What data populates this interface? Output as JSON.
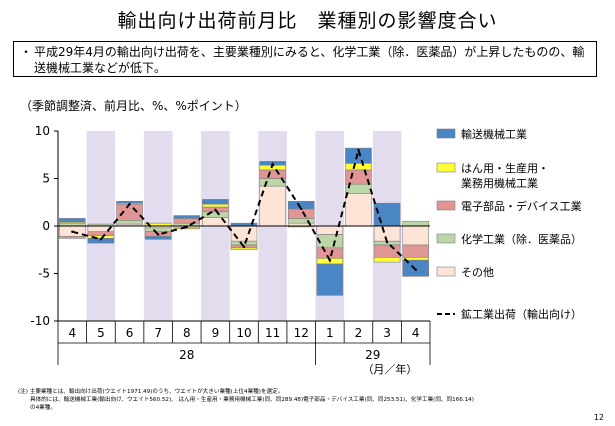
{
  "title": "輸出向け出荷前月比　業種別の影響度合い",
  "summary": {
    "bullet": "・",
    "text": "平成29年4月の輸出向け出荷を、主要業種別にみると、化学工業（除．医薬品）が上昇したものの、輸送機械工業などが低下。"
  },
  "unit_label": "（季節調整済、前月比、%、%ポイント）",
  "note": {
    "line1": "(注) 主要業種とは、輸出向け出荷(ウエイト1971.49)のうち、ウエイトが大きい業種(上位4業種)を選定。",
    "line2": "具体的には、輸送機械工業(輸出向け、ウエイト560.52)、 はん用・生産用・業務用機械工業(同、同289.48)電子部品・デバイス工業(同、同253.51)、化学工業(同、同166.14)",
    "line3": "の4業種。"
  },
  "page_number": "12",
  "colors": {
    "transport": "#4a86c5",
    "machinery": "#ffff33",
    "electronics": "#e19595",
    "chemical": "#bdd6a8",
    "other": "#fde4d6",
    "shade": "#e3dcef",
    "line": "#000000"
  },
  "chart_data": {
    "type": "bar",
    "stacked": true,
    "x_labels": [
      "4",
      "5",
      "6",
      "7",
      "8",
      "9",
      "10",
      "11",
      "12",
      "1",
      "2",
      "3",
      "4"
    ],
    "year_labels": [
      {
        "label": "28",
        "from": 0,
        "to": 8
      },
      {
        "label": "29",
        "from": 9,
        "to": 12
      }
    ],
    "axis_unit": "（月／年）",
    "shaded_months": [
      1,
      3,
      5,
      7,
      9,
      11
    ],
    "ylim": [
      -10,
      10
    ],
    "yticks": [
      -10,
      -5,
      0,
      5,
      10
    ],
    "series": [
      {
        "name": "その他",
        "key": "other",
        "values": [
          -1.1,
          -0.6,
          0.2,
          -0.2,
          -0.2,
          0.9,
          -1.6,
          4.2,
          0.3,
          -0.9,
          3.4,
          -1.6,
          -2.0
        ]
      },
      {
        "name": "化学工業（除．医薬品）",
        "key": "chemical",
        "values": [
          0.3,
          0.2,
          0.4,
          -0.4,
          0.3,
          0.6,
          -0.4,
          0.8,
          0.5,
          -1.4,
          1.0,
          -0.4,
          0.5
        ]
      },
      {
        "name": "電子部品・デバイス工業",
        "key": "electronics",
        "values": [
          -0.2,
          -0.4,
          1.7,
          -0.5,
          0.5,
          0.5,
          -0.3,
          0.9,
          1.0,
          -1.1,
          1.5,
          -1.3,
          -1.3
        ]
      },
      {
        "name": "はん用・生産用・業務用機械工業",
        "key": "machinery",
        "values": [
          0.1,
          -0.3,
          0.1,
          0.3,
          -0.1,
          0.3,
          -0.2,
          0.5,
          -0.1,
          -0.6,
          0.7,
          -0.5,
          -0.3
        ]
      },
      {
        "name": "輸送機械工業",
        "key": "transport",
        "values": [
          0.4,
          -0.5,
          0.2,
          -0.3,
          0.3,
          0.5,
          0.3,
          0.4,
          0.8,
          -3.3,
          1.6,
          2.4,
          -1.7
        ]
      }
    ],
    "line_series": {
      "name": "鉱工業出荷（輸出向け）",
      "values": [
        -0.6,
        -1.4,
        2.3,
        -0.9,
        -0.1,
        1.7,
        -2.2,
        6.5,
        1.8,
        -3.6,
        8.0,
        -1.7,
        -4.6
      ]
    },
    "legend_order": [
      "transport",
      "machinery",
      "electronics",
      "chemical",
      "other",
      "line"
    ],
    "legend_labels": {
      "transport": [
        "輸送機械工業"
      ],
      "machinery": [
        "はん用・生産用・",
        "業務用機械工業"
      ],
      "electronics": [
        "電子部品・デバイス工業"
      ],
      "chemical": [
        "化学工業（除．医薬品）"
      ],
      "other": [
        "その他"
      ],
      "line": [
        "鉱工業出荷（輸出向け）"
      ]
    }
  }
}
